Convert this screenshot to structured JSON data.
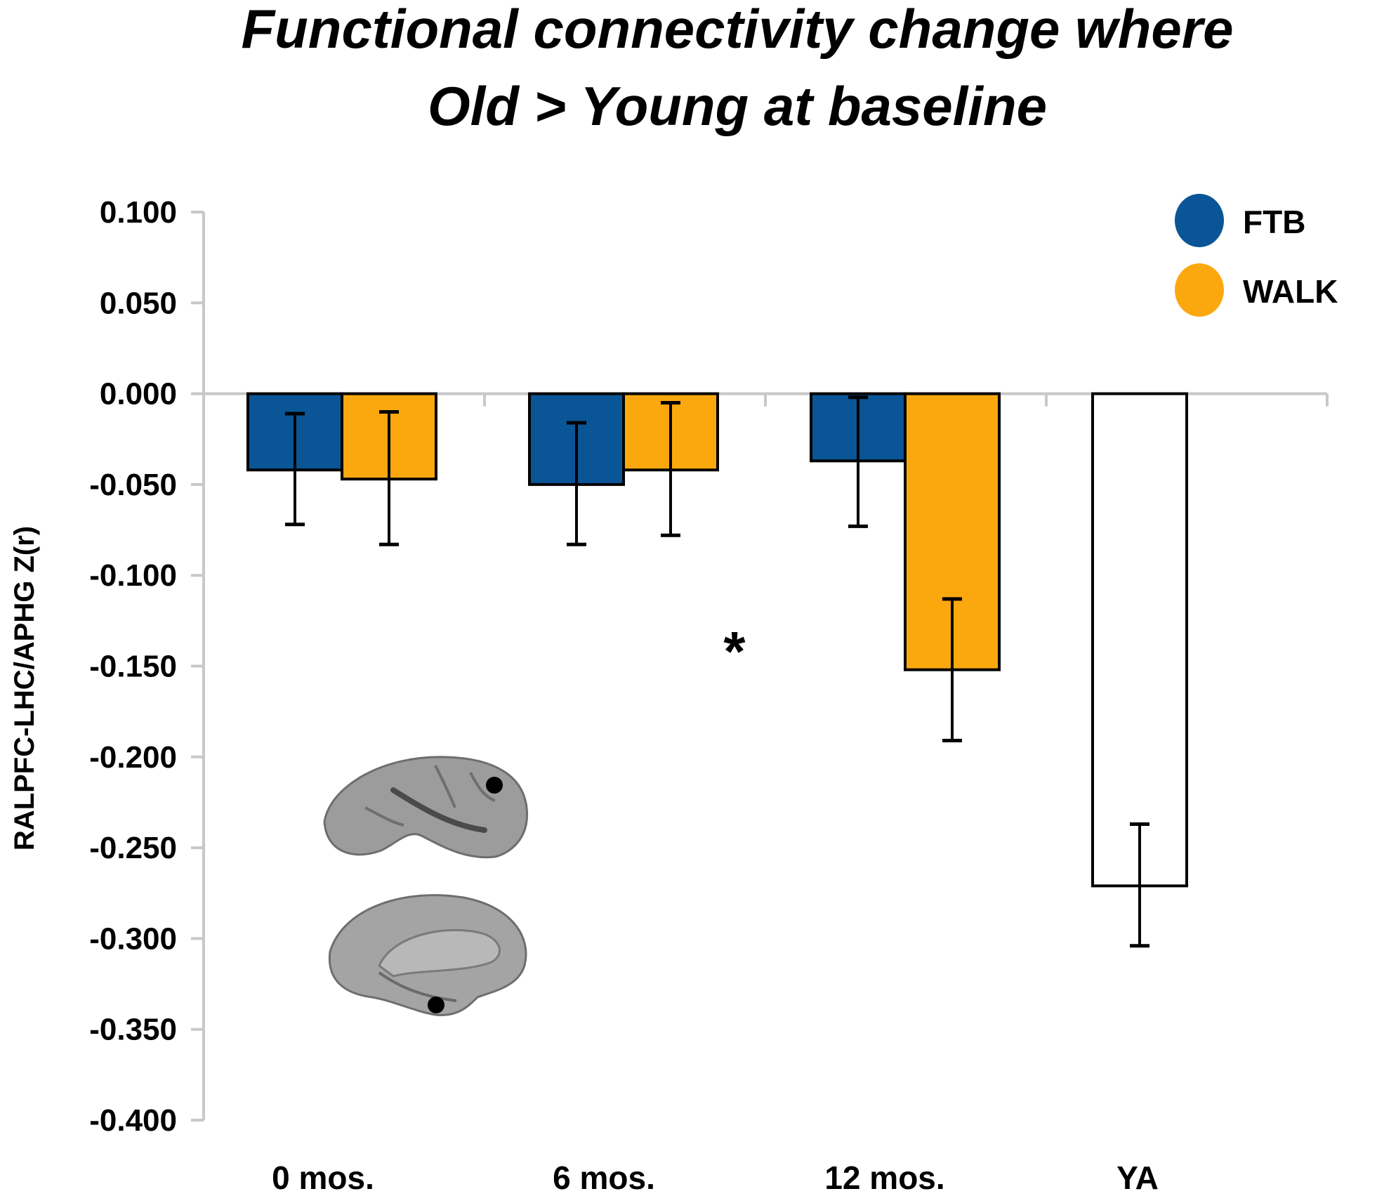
{
  "chart_data": {
    "type": "bar",
    "title_line1": "Functional connectivity change where",
    "title_line2": "Old > Young at baseline",
    "ylabel": "RALPFC-LHC/APHG Z(r)",
    "xlabel": "",
    "ylim": [
      -0.4,
      0.1
    ],
    "yticks": [
      0.1,
      0.05,
      0.0,
      -0.05,
      -0.1,
      -0.15,
      -0.2,
      -0.25,
      -0.3,
      -0.35,
      -0.4
    ],
    "ytick_labels": [
      "0.100",
      "0.050",
      "0.000",
      "-0.050",
      "-0.100",
      "-0.150",
      "-0.200",
      "-0.250",
      "-0.300",
      "-0.350",
      "-0.400"
    ],
    "categories": [
      "0 mos.",
      "6 mos.",
      "12 mos.",
      "YA"
    ],
    "series": [
      {
        "name": "FTB",
        "color": "#0a5596",
        "values": [
          -0.042,
          -0.05,
          -0.037,
          null
        ],
        "err_low": [
          -0.072,
          -0.083,
          -0.073,
          null
        ],
        "err_high": [
          -0.011,
          -0.016,
          -0.002,
          null
        ]
      },
      {
        "name": "WALK",
        "color": "#fba80f",
        "values": [
          -0.047,
          -0.042,
          -0.152,
          null
        ],
        "err_low": [
          -0.083,
          -0.078,
          -0.191,
          null
        ],
        "err_high": [
          -0.01,
          -0.005,
          -0.113,
          null
        ]
      },
      {
        "name": "YA",
        "color": "#ffffff",
        "values": [
          null,
          null,
          null,
          -0.271
        ],
        "err_low": [
          null,
          null,
          null,
          -0.304
        ],
        "err_high": [
          null,
          null,
          null,
          -0.237
        ]
      }
    ],
    "legend": [
      {
        "label": "FTB",
        "color": "#0a5596"
      },
      {
        "label": "WALK",
        "color": "#fba80f"
      }
    ],
    "legend_position": "top-right",
    "annotation": "*",
    "grid": false,
    "inset_image": "brain-surface-lateral-and-medial-with-seed-dots"
  }
}
